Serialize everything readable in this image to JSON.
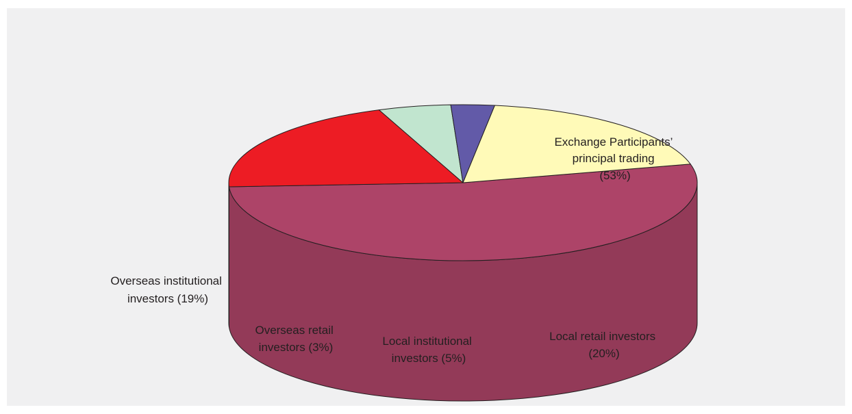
{
  "chart_data": {
    "type": "pie",
    "style": "3d",
    "slices": [
      {
        "label": [
          "Exchange Participants’",
          "principal trading",
          "(53%)"
        ],
        "value": 53,
        "color": "#ad4468"
      },
      {
        "label": [
          "Local retail investors",
          "(20%)"
        ],
        "value": 20,
        "color": "#ed1c24"
      },
      {
        "label": [
          "Local institutional",
          "investors (5%)"
        ],
        "value": 5,
        "color": "#c1e5cf"
      },
      {
        "label": [
          "Overseas retail",
          "investors (3%)"
        ],
        "value": 3,
        "color": "#625aa8"
      },
      {
        "label": [
          "Overseas institutional",
          "investors (19%)"
        ],
        "value": 19,
        "color": "#fffab8"
      }
    ],
    "legend": "none",
    "background": "#f0f0f1"
  }
}
